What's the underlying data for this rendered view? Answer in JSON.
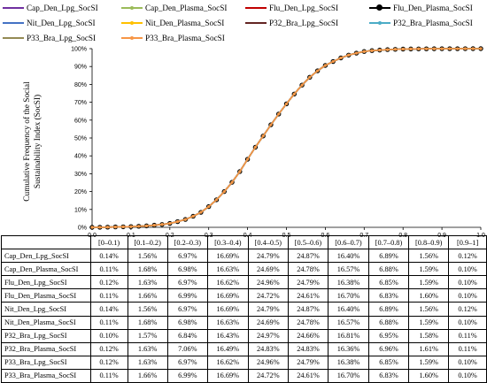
{
  "chart_data": {
    "type": "line",
    "title": "",
    "xlabel": "",
    "ylabel": "Cumulative Frequency of the Social Sustainability Index (SocSI)",
    "ylabel_lines": [
      "Cumulative Frequency of the Social",
      "Sustainability Index (SocSI)"
    ],
    "xlim": [
      0.0,
      1.0
    ],
    "ylim": [
      0,
      100
    ],
    "x_ticks": [
      "0.0",
      "0.1",
      "0.2",
      "0.3",
      "0.4",
      "0.5",
      "0.6",
      "0.7",
      "0.8",
      "0.9",
      "1.0"
    ],
    "y_ticks": [
      "0%",
      "10%",
      "20%",
      "30%",
      "40%",
      "50%",
      "60%",
      "70%",
      "80%",
      "90%",
      "100%"
    ],
    "grid": false,
    "legend_position": "top",
    "x": [
      0.0,
      0.02,
      0.04,
      0.06,
      0.08,
      0.1,
      0.12,
      0.14,
      0.16,
      0.18,
      0.2,
      0.22,
      0.24,
      0.26,
      0.28,
      0.3,
      0.32,
      0.34,
      0.36,
      0.38,
      0.4,
      0.42,
      0.44,
      0.46,
      0.48,
      0.5,
      0.52,
      0.54,
      0.56,
      0.58,
      0.6,
      0.62,
      0.64,
      0.66,
      0.68,
      0.7,
      0.72,
      0.74,
      0.76,
      0.78,
      0.8,
      0.82,
      0.84,
      0.86,
      0.88,
      0.9,
      0.92,
      0.94,
      0.96,
      0.98,
      1.0
    ],
    "cumulative_percent": [
      0.0,
      0.04,
      0.1,
      0.2,
      0.3,
      0.4,
      0.6,
      0.8,
      1.2,
      1.6,
      2.2,
      3.2,
      4.4,
      6.2,
      8.4,
      11.6,
      15.4,
      20.0,
      25.2,
      31.2,
      38.1,
      44.8,
      51.1,
      57.4,
      63.4,
      69.1,
      74.6,
      79.6,
      84.0,
      87.6,
      90.6,
      92.8,
      94.8,
      96.4,
      97.5,
      98.4,
      98.9,
      99.2,
      99.45,
      99.62,
      99.75,
      99.82,
      99.87,
      99.91,
      99.94,
      99.96,
      99.97,
      99.98,
      99.99,
      100.0,
      100.0
    ],
    "series": [
      {
        "name": "Cap_Den_Lpg_SocSI",
        "color": "#7030a0",
        "marker": "none"
      },
      {
        "name": "Cap_Den_Plasma_SocSI",
        "color": "#9bbb59",
        "marker": "circle-small"
      },
      {
        "name": "Flu_Den_Lpg_SocSI",
        "color": "#c00000",
        "marker": "none"
      },
      {
        "name": "Flu_Den_Plasma_SocSI",
        "color": "#000000",
        "marker": "circle"
      },
      {
        "name": "Nit_Den_Lpg_SocSI",
        "color": "#4472c4",
        "marker": "none"
      },
      {
        "name": "Nit_Den_Plasma_SocSI",
        "color": "#ffc000",
        "marker": "circle-small"
      },
      {
        "name": "P32_Bra_Lpg_SocSI",
        "color": "#632523",
        "marker": "none"
      },
      {
        "name": "P32_Bra_Plasma_SocSI",
        "color": "#4bacc6",
        "marker": "circle-small"
      },
      {
        "name": "P33_Bra_Lpg_SocSI",
        "color": "#948a54",
        "marker": "none"
      },
      {
        "name": "P33_Bra_Plasma_SocSI",
        "color": "#f79646",
        "marker": "circle-small"
      }
    ],
    "table": {
      "columns": [
        "",
        "[0–0.1)",
        "[0.1–0.2)",
        "[0.2–0.3)",
        "[0.3–0.4)",
        "[0.4–0.5)",
        "[0.5–0.6)",
        "[0.6–0.7)",
        "[0.7–0.8)",
        "[0.8–0.9)",
        "[0.9–1]"
      ],
      "rows": [
        {
          "label": "Cap_Den_Lpg_SocSI",
          "values": [
            "0.14%",
            "1.56%",
            "6.97%",
            "16.69%",
            "24.79%",
            "24.87%",
            "16.40%",
            "6.89%",
            "1.56%",
            "0.12%"
          ]
        },
        {
          "label": "Cap_Den_Plasma_SocSI",
          "values": [
            "0.11%",
            "1.68%",
            "6.98%",
            "16.63%",
            "24.69%",
            "24.78%",
            "16.57%",
            "6.88%",
            "1.59%",
            "0.10%"
          ]
        },
        {
          "label": "Flu_Den_Lpg_SocSI",
          "values": [
            "0.12%",
            "1.63%",
            "6.97%",
            "16.62%",
            "24.96%",
            "24.79%",
            "16.38%",
            "6.85%",
            "1.59%",
            "0.10%"
          ]
        },
        {
          "label": "Flu_Den_Plasma_SocSI",
          "values": [
            "0.11%",
            "1.66%",
            "6.99%",
            "16.69%",
            "24.72%",
            "24.61%",
            "16.70%",
            "6.83%",
            "1.60%",
            "0.10%"
          ]
        },
        {
          "label": "Nit_Den_Lpg_SocSI",
          "values": [
            "0.14%",
            "1.56%",
            "6.97%",
            "16.69%",
            "24.79%",
            "24.87%",
            "16.40%",
            "6.89%",
            "1.56%",
            "0.12%"
          ]
        },
        {
          "label": "Nit_Den_Plasma_SocSI",
          "values": [
            "0.11%",
            "1.68%",
            "6.98%",
            "16.63%",
            "24.69%",
            "24.78%",
            "16.57%",
            "6.88%",
            "1.59%",
            "0.10%"
          ]
        },
        {
          "label": "P32_Bra_Lpg_SocSI",
          "values": [
            "0.10%",
            "1.57%",
            "6.84%",
            "16.43%",
            "24.97%",
            "24.66%",
            "16.81%",
            "6.95%",
            "1.58%",
            "0.11%"
          ]
        },
        {
          "label": "P32_Bra_Plasma_SocSI",
          "values": [
            "0.12%",
            "1.63%",
            "7.06%",
            "16.49%",
            "24.83%",
            "24.83%",
            "16.36%",
            "6.96%",
            "1.61%",
            "0.11%"
          ]
        },
        {
          "label": "P33_Bra_Lpg_SocSI",
          "values": [
            "0.12%",
            "1.63%",
            "6.97%",
            "16.62%",
            "24.96%",
            "24.79%",
            "16.38%",
            "6.85%",
            "1.59%",
            "0.10%"
          ]
        },
        {
          "label": "P33_Bra_Plasma_SocSI",
          "values": [
            "0.11%",
            "1.66%",
            "6.99%",
            "16.69%",
            "24.72%",
            "24.61%",
            "16.70%",
            "6.83%",
            "1.60%",
            "0.10%"
          ]
        }
      ]
    }
  }
}
